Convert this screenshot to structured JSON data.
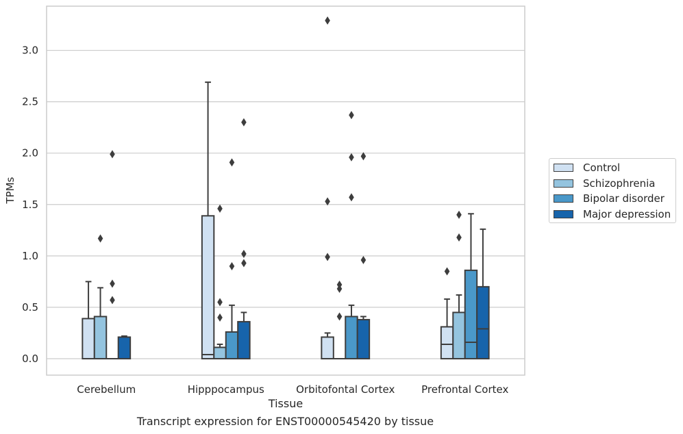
{
  "caption": "Transcript expression for ENST00000545420 by tissue",
  "legend": {
    "items": [
      {
        "label": "Control",
        "color": "#d0e1f2"
      },
      {
        "label": "Schizophrenia",
        "color": "#94c4df"
      },
      {
        "label": "Bipolar disorder",
        "color": "#4a98c9"
      },
      {
        "label": "Major depression",
        "color": "#1764ab"
      }
    ]
  },
  "chart_data": {
    "type": "box",
    "title": "",
    "xlabel": "Tissue",
    "ylabel": "TPMs",
    "ylim": [
      -0.16,
      3.43
    ],
    "yticks": [
      0.0,
      0.5,
      1.0,
      1.5,
      2.0,
      2.5,
      3.0
    ],
    "ytick_labels": [
      "0.0",
      "0.5",
      "1.0",
      "1.5",
      "2.0",
      "2.5",
      "3.0"
    ],
    "grid": "horizontal",
    "legend_position": "right",
    "categories": [
      "Cerebellum",
      "Hipppocampus",
      "Orbitofontal Cortex",
      "Prefrontal Cortex"
    ],
    "series": [
      {
        "name": "Control",
        "color": "#d0e1f2",
        "boxes": [
          {
            "q1": 0.0,
            "median": 0.0,
            "q3": 0.39,
            "whisker_low": 0.0,
            "whisker_high": 0.75,
            "outliers": []
          },
          {
            "q1": 0.0,
            "median": 0.04,
            "q3": 1.39,
            "whisker_low": 0.0,
            "whisker_high": 2.69,
            "outliers": []
          },
          {
            "q1": 0.0,
            "median": 0.0,
            "q3": 0.21,
            "whisker_low": 0.0,
            "whisker_high": 0.25,
            "outliers": [
              0.99,
              1.53,
              3.29
            ]
          },
          {
            "q1": 0.0,
            "median": 0.14,
            "q3": 0.31,
            "whisker_low": 0.0,
            "whisker_high": 0.58,
            "outliers": [
              0.85
            ]
          }
        ]
      },
      {
        "name": "Schizophrenia",
        "color": "#94c4df",
        "boxes": [
          {
            "q1": 0.0,
            "median": 0.0,
            "q3": 0.41,
            "whisker_low": 0.0,
            "whisker_high": 0.69,
            "outliers": [
              1.17
            ]
          },
          {
            "q1": 0.0,
            "median": 0.0,
            "q3": 0.11,
            "whisker_low": 0.0,
            "whisker_high": 0.14,
            "outliers": [
              0.4,
              0.55,
              1.46
            ]
          },
          {
            "q1": 0.0,
            "median": 0.0,
            "q3": 0.0,
            "whisker_low": 0.0,
            "whisker_high": 0.0,
            "outliers": [
              0.41,
              0.68,
              0.72
            ]
          },
          {
            "q1": 0.0,
            "median": 0.0,
            "q3": 0.45,
            "whisker_low": 0.0,
            "whisker_high": 0.62,
            "outliers": [
              1.18,
              1.4
            ]
          }
        ]
      },
      {
        "name": "Bipolar disorder",
        "color": "#4a98c9",
        "boxes": [
          {
            "q1": 0.0,
            "median": 0.0,
            "q3": 0.0,
            "whisker_low": 0.0,
            "whisker_high": 0.0,
            "outliers": [
              0.57,
              0.73,
              1.99
            ]
          },
          {
            "q1": 0.0,
            "median": 0.0,
            "q3": 0.26,
            "whisker_low": 0.0,
            "whisker_high": 0.52,
            "outliers": [
              0.9,
              1.91
            ]
          },
          {
            "q1": 0.0,
            "median": 0.0,
            "q3": 0.41,
            "whisker_low": 0.0,
            "whisker_high": 0.52,
            "outliers": [
              1.57,
              1.96,
              2.37
            ]
          },
          {
            "q1": 0.0,
            "median": 0.16,
            "q3": 0.86,
            "whisker_low": 0.0,
            "whisker_high": 1.41,
            "outliers": []
          }
        ]
      },
      {
        "name": "Major depression",
        "color": "#1764ab",
        "boxes": [
          {
            "q1": 0.0,
            "median": 0.0,
            "q3": 0.21,
            "whisker_low": 0.0,
            "whisker_high": 0.22,
            "outliers": []
          },
          {
            "q1": 0.0,
            "median": 0.0,
            "q3": 0.36,
            "whisker_low": 0.0,
            "whisker_high": 0.45,
            "outliers": [
              0.93,
              1.02,
              2.3
            ]
          },
          {
            "q1": 0.0,
            "median": 0.0,
            "q3": 0.38,
            "whisker_low": 0.0,
            "whisker_high": 0.41,
            "outliers": [
              0.96,
              1.97
            ]
          },
          {
            "q1": 0.0,
            "median": 0.29,
            "q3": 0.7,
            "whisker_low": 0.0,
            "whisker_high": 1.26,
            "outliers": []
          }
        ]
      }
    ]
  }
}
